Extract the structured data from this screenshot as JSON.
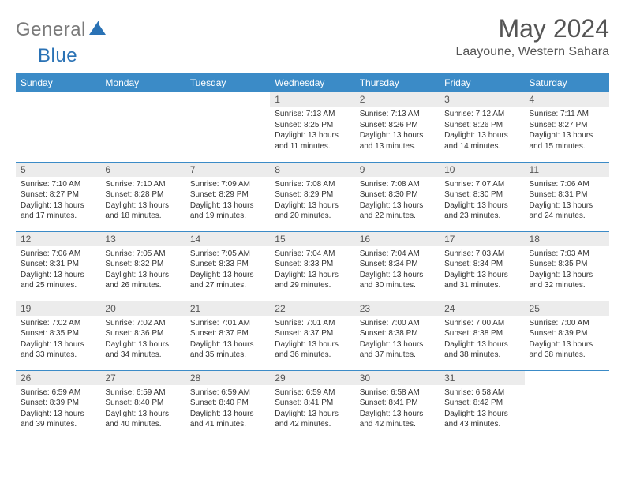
{
  "logo": {
    "word1": "General",
    "word2": "Blue"
  },
  "title": "May 2024",
  "location": "Laayoune, Western Sahara",
  "colors": {
    "header_bg": "#3b8bc7",
    "header_text": "#ffffff",
    "daynum_bg": "#ececec",
    "text": "#333333",
    "logo_gray": "#7a7a7a",
    "logo_blue": "#2a72b5",
    "border": "#3b8bc7"
  },
  "weekdays": [
    "Sunday",
    "Monday",
    "Tuesday",
    "Wednesday",
    "Thursday",
    "Friday",
    "Saturday"
  ],
  "weeks": [
    [
      {
        "day": "",
        "lines": []
      },
      {
        "day": "",
        "lines": []
      },
      {
        "day": "",
        "lines": []
      },
      {
        "day": "1",
        "lines": [
          "Sunrise: 7:13 AM",
          "Sunset: 8:25 PM",
          "Daylight: 13 hours",
          "and 11 minutes."
        ]
      },
      {
        "day": "2",
        "lines": [
          "Sunrise: 7:13 AM",
          "Sunset: 8:26 PM",
          "Daylight: 13 hours",
          "and 13 minutes."
        ]
      },
      {
        "day": "3",
        "lines": [
          "Sunrise: 7:12 AM",
          "Sunset: 8:26 PM",
          "Daylight: 13 hours",
          "and 14 minutes."
        ]
      },
      {
        "day": "4",
        "lines": [
          "Sunrise: 7:11 AM",
          "Sunset: 8:27 PM",
          "Daylight: 13 hours",
          "and 15 minutes."
        ]
      }
    ],
    [
      {
        "day": "5",
        "lines": [
          "Sunrise: 7:10 AM",
          "Sunset: 8:27 PM",
          "Daylight: 13 hours",
          "and 17 minutes."
        ]
      },
      {
        "day": "6",
        "lines": [
          "Sunrise: 7:10 AM",
          "Sunset: 8:28 PM",
          "Daylight: 13 hours",
          "and 18 minutes."
        ]
      },
      {
        "day": "7",
        "lines": [
          "Sunrise: 7:09 AM",
          "Sunset: 8:29 PM",
          "Daylight: 13 hours",
          "and 19 minutes."
        ]
      },
      {
        "day": "8",
        "lines": [
          "Sunrise: 7:08 AM",
          "Sunset: 8:29 PM",
          "Daylight: 13 hours",
          "and 20 minutes."
        ]
      },
      {
        "day": "9",
        "lines": [
          "Sunrise: 7:08 AM",
          "Sunset: 8:30 PM",
          "Daylight: 13 hours",
          "and 22 minutes."
        ]
      },
      {
        "day": "10",
        "lines": [
          "Sunrise: 7:07 AM",
          "Sunset: 8:30 PM",
          "Daylight: 13 hours",
          "and 23 minutes."
        ]
      },
      {
        "day": "11",
        "lines": [
          "Sunrise: 7:06 AM",
          "Sunset: 8:31 PM",
          "Daylight: 13 hours",
          "and 24 minutes."
        ]
      }
    ],
    [
      {
        "day": "12",
        "lines": [
          "Sunrise: 7:06 AM",
          "Sunset: 8:31 PM",
          "Daylight: 13 hours",
          "and 25 minutes."
        ]
      },
      {
        "day": "13",
        "lines": [
          "Sunrise: 7:05 AM",
          "Sunset: 8:32 PM",
          "Daylight: 13 hours",
          "and 26 minutes."
        ]
      },
      {
        "day": "14",
        "lines": [
          "Sunrise: 7:05 AM",
          "Sunset: 8:33 PM",
          "Daylight: 13 hours",
          "and 27 minutes."
        ]
      },
      {
        "day": "15",
        "lines": [
          "Sunrise: 7:04 AM",
          "Sunset: 8:33 PM",
          "Daylight: 13 hours",
          "and 29 minutes."
        ]
      },
      {
        "day": "16",
        "lines": [
          "Sunrise: 7:04 AM",
          "Sunset: 8:34 PM",
          "Daylight: 13 hours",
          "and 30 minutes."
        ]
      },
      {
        "day": "17",
        "lines": [
          "Sunrise: 7:03 AM",
          "Sunset: 8:34 PM",
          "Daylight: 13 hours",
          "and 31 minutes."
        ]
      },
      {
        "day": "18",
        "lines": [
          "Sunrise: 7:03 AM",
          "Sunset: 8:35 PM",
          "Daylight: 13 hours",
          "and 32 minutes."
        ]
      }
    ],
    [
      {
        "day": "19",
        "lines": [
          "Sunrise: 7:02 AM",
          "Sunset: 8:35 PM",
          "Daylight: 13 hours",
          "and 33 minutes."
        ]
      },
      {
        "day": "20",
        "lines": [
          "Sunrise: 7:02 AM",
          "Sunset: 8:36 PM",
          "Daylight: 13 hours",
          "and 34 minutes."
        ]
      },
      {
        "day": "21",
        "lines": [
          "Sunrise: 7:01 AM",
          "Sunset: 8:37 PM",
          "Daylight: 13 hours",
          "and 35 minutes."
        ]
      },
      {
        "day": "22",
        "lines": [
          "Sunrise: 7:01 AM",
          "Sunset: 8:37 PM",
          "Daylight: 13 hours",
          "and 36 minutes."
        ]
      },
      {
        "day": "23",
        "lines": [
          "Sunrise: 7:00 AM",
          "Sunset: 8:38 PM",
          "Daylight: 13 hours",
          "and 37 minutes."
        ]
      },
      {
        "day": "24",
        "lines": [
          "Sunrise: 7:00 AM",
          "Sunset: 8:38 PM",
          "Daylight: 13 hours",
          "and 38 minutes."
        ]
      },
      {
        "day": "25",
        "lines": [
          "Sunrise: 7:00 AM",
          "Sunset: 8:39 PM",
          "Daylight: 13 hours",
          "and 38 minutes."
        ]
      }
    ],
    [
      {
        "day": "26",
        "lines": [
          "Sunrise: 6:59 AM",
          "Sunset: 8:39 PM",
          "Daylight: 13 hours",
          "and 39 minutes."
        ]
      },
      {
        "day": "27",
        "lines": [
          "Sunrise: 6:59 AM",
          "Sunset: 8:40 PM",
          "Daylight: 13 hours",
          "and 40 minutes."
        ]
      },
      {
        "day": "28",
        "lines": [
          "Sunrise: 6:59 AM",
          "Sunset: 8:40 PM",
          "Daylight: 13 hours",
          "and 41 minutes."
        ]
      },
      {
        "day": "29",
        "lines": [
          "Sunrise: 6:59 AM",
          "Sunset: 8:41 PM",
          "Daylight: 13 hours",
          "and 42 minutes."
        ]
      },
      {
        "day": "30",
        "lines": [
          "Sunrise: 6:58 AM",
          "Sunset: 8:41 PM",
          "Daylight: 13 hours",
          "and 42 minutes."
        ]
      },
      {
        "day": "31",
        "lines": [
          "Sunrise: 6:58 AM",
          "Sunset: 8:42 PM",
          "Daylight: 13 hours",
          "and 43 minutes."
        ]
      },
      {
        "day": "",
        "lines": []
      }
    ]
  ]
}
